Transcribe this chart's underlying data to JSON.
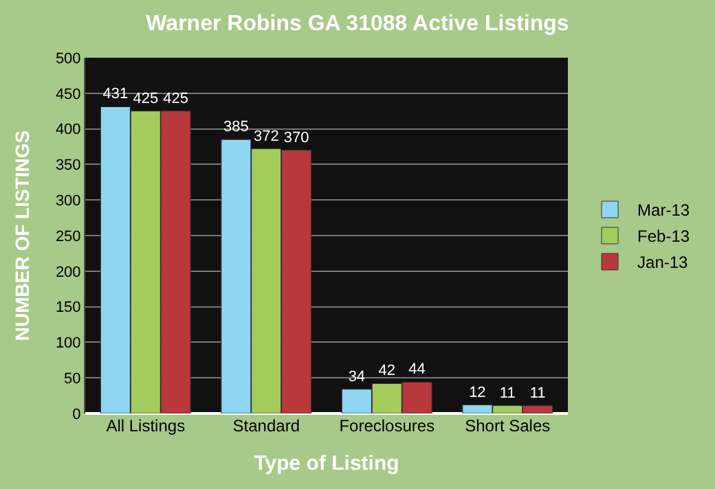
{
  "chart_data": {
    "type": "bar",
    "title": "Warner Robins GA 31088 Active Listings",
    "xlabel": "Type of Listing",
    "ylabel": "NUMBER OF LISTINGS",
    "categories": [
      "All Listings",
      "Standard",
      "Foreclosures",
      "Short Sales"
    ],
    "series": [
      {
        "name": "Mar-13",
        "color": "#8fd6f2",
        "values": [
          431,
          385,
          34,
          12
        ]
      },
      {
        "name": "Feb-13",
        "color": "#a4cc5c",
        "values": [
          425,
          372,
          42,
          11
        ]
      },
      {
        "name": "Jan-13",
        "color": "#b8383c",
        "values": [
          425,
          370,
          44,
          11
        ]
      }
    ],
    "ylim": [
      0,
      500
    ],
    "yticks": [
      0,
      50,
      100,
      150,
      200,
      250,
      300,
      350,
      400,
      450,
      500
    ],
    "grid": "y",
    "legend": "right",
    "data_labels": true
  }
}
